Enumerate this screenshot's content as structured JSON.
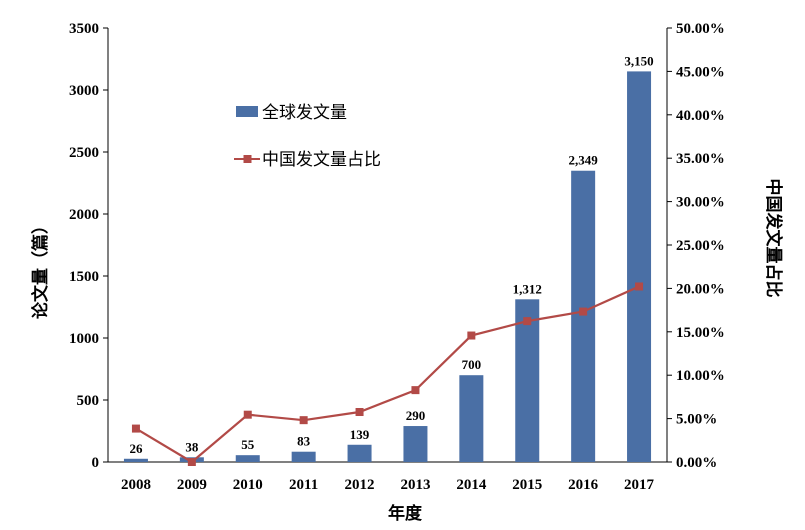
{
  "chart_data": {
    "type": "bar+line",
    "categories": [
      "2008",
      "2009",
      "2010",
      "2011",
      "2012",
      "2013",
      "2014",
      "2015",
      "2016",
      "2017"
    ],
    "bar_labels": [
      "26",
      "38",
      "55",
      "83",
      "139",
      "290",
      "700",
      "1,312",
      "2,349",
      "3,150"
    ],
    "series": [
      {
        "name": "全球发文量",
        "type": "bar",
        "axis": "left",
        "color": "#4a6fa5",
        "values": [
          26,
          38,
          55,
          83,
          139,
          290,
          700,
          1312,
          2349,
          3150
        ]
      },
      {
        "name": "中国发文量占比",
        "type": "line",
        "axis": "right",
        "color": "#b24a47",
        "values": [
          3.85,
          0.0,
          5.45,
          4.82,
          5.76,
          8.28,
          14.57,
          16.23,
          17.33,
          20.22
        ]
      }
    ],
    "xlabel": "年度",
    "ylabel_left": "论文量（篇）",
    "ylabel_right": "中国发文量占比",
    "ylim_left": [
      0,
      3500
    ],
    "yticks_left": [
      "0",
      "500",
      "1000",
      "1500",
      "2000",
      "2500",
      "3000",
      "3500"
    ],
    "ylim_right": [
      0,
      50
    ],
    "yticks_right": [
      "0.00%",
      "5.00%",
      "10.00%",
      "15.00%",
      "20.00%",
      "25.00%",
      "30.00%",
      "35.00%",
      "40.00%",
      "45.00%",
      "50.00%"
    ],
    "legend_position": "upper-left inside plot",
    "grid": false
  }
}
